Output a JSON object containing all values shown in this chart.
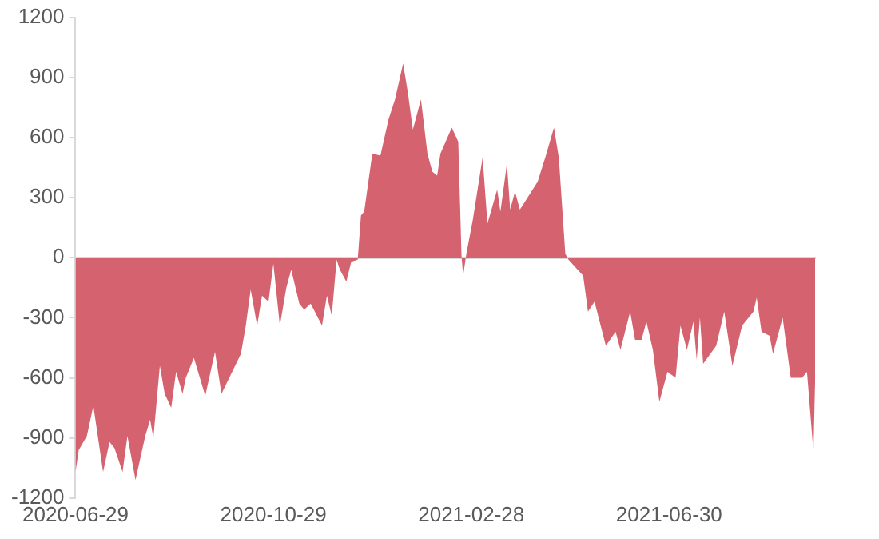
{
  "chart_data": {
    "type": "area",
    "color": "#d4626f",
    "x": [
      "2020-06-29",
      "2020-07-01",
      "2020-07-06",
      "2020-07-10",
      "2020-07-16",
      "2020-07-20",
      "2020-07-23",
      "2020-07-28",
      "2020-07-31",
      "2020-08-05",
      "2020-08-11",
      "2020-08-14",
      "2020-08-16",
      "2020-08-20",
      "2020-08-23",
      "2020-08-27",
      "2020-08-30",
      "2020-09-03",
      "2020-09-05",
      "2020-09-10",
      "2020-09-17",
      "2020-09-23",
      "2020-09-27",
      "2020-10-09",
      "2020-10-12",
      "2020-10-15",
      "2020-10-19",
      "2020-10-22",
      "2020-10-26",
      "2020-10-29",
      "2020-11-02",
      "2020-11-06",
      "2020-11-09",
      "2020-11-14",
      "2020-11-17",
      "2020-11-21",
      "2020-11-28",
      "2020-12-01",
      "2020-12-04",
      "2020-12-07",
      "2020-12-09",
      "2020-12-13",
      "2020-12-16",
      "2020-12-20",
      "2020-12-22",
      "2020-12-24",
      "2020-12-29",
      "2021-01-03",
      "2021-01-08",
      "2021-01-12",
      "2021-01-17",
      "2021-01-20",
      "2021-01-23",
      "2021-01-28",
      "2021-02-01",
      "2021-02-04",
      "2021-02-07",
      "2021-02-09",
      "2021-02-16",
      "2021-02-20",
      "2021-02-22",
      "2021-02-23",
      "2021-02-25",
      "2021-03-01",
      "2021-03-07",
      "2021-03-10",
      "2021-03-16",
      "2021-03-18",
      "2021-03-22",
      "2021-03-24",
      "2021-03-27",
      "2021-03-30",
      "2021-04-10",
      "2021-04-15",
      "2021-04-20",
      "2021-04-23",
      "2021-04-27",
      "2021-04-29",
      "2021-05-08",
      "2021-05-11",
      "2021-05-15",
      "2021-05-22",
      "2021-05-28",
      "2021-05-31",
      "2021-06-06",
      "2021-06-09",
      "2021-06-13",
      "2021-06-16",
      "2021-06-20",
      "2021-06-24",
      "2021-06-29",
      "2021-07-04",
      "2021-07-07",
      "2021-07-11",
      "2021-07-15",
      "2021-07-17",
      "2021-07-19",
      "2021-07-21",
      "2021-07-29",
      "2021-08-03",
      "2021-08-08",
      "2021-08-14",
      "2021-08-21",
      "2021-08-23",
      "2021-08-26",
      "2021-08-31",
      "2021-09-02",
      "2021-09-08",
      "2021-09-13",
      "2021-09-20",
      "2021-09-23",
      "2021-09-27",
      "2021-09-28"
    ],
    "values": [
      -1070,
      -960,
      -890,
      -740,
      -1070,
      -920,
      -950,
      -1070,
      -890,
      -1110,
      -890,
      -810,
      -900,
      -540,
      -680,
      -750,
      -570,
      -680,
      -600,
      -500,
      -690,
      -470,
      -680,
      -480,
      -340,
      -160,
      -340,
      -190,
      -220,
      -30,
      -340,
      -150,
      -60,
      -230,
      -260,
      -230,
      -340,
      -190,
      -290,
      -10,
      -60,
      -120,
      -20,
      -10,
      210,
      230,
      520,
      510,
      690,
      790,
      970,
      820,
      640,
      790,
      520,
      430,
      410,
      520,
      650,
      580,
      10,
      -90,
      20,
      190,
      500,
      170,
      340,
      230,
      470,
      240,
      330,
      240,
      380,
      510,
      650,
      500,
      20,
      -10,
      -90,
      -270,
      -220,
      -440,
      -370,
      -460,
      -270,
      -410,
      -410,
      -320,
      -460,
      -720,
      -570,
      -600,
      -340,
      -460,
      -320,
      -510,
      -300,
      -530,
      -440,
      -270,
      -540,
      -340,
      -270,
      -200,
      -370,
      -390,
      -480,
      -300,
      -600,
      -600,
      -570,
      -970,
      -620
    ],
    "xlim": [
      "2020-06-29",
      "2021-09-28"
    ],
    "xticks": [
      "2020-06-29",
      "2020-10-29",
      "2021-02-28",
      "2021-06-30"
    ],
    "ylim": [
      -1200,
      1200
    ],
    "yticks": [
      -1200,
      -900,
      -600,
      -300,
      0,
      300,
      600,
      900,
      1200
    ],
    "legend": false
  }
}
